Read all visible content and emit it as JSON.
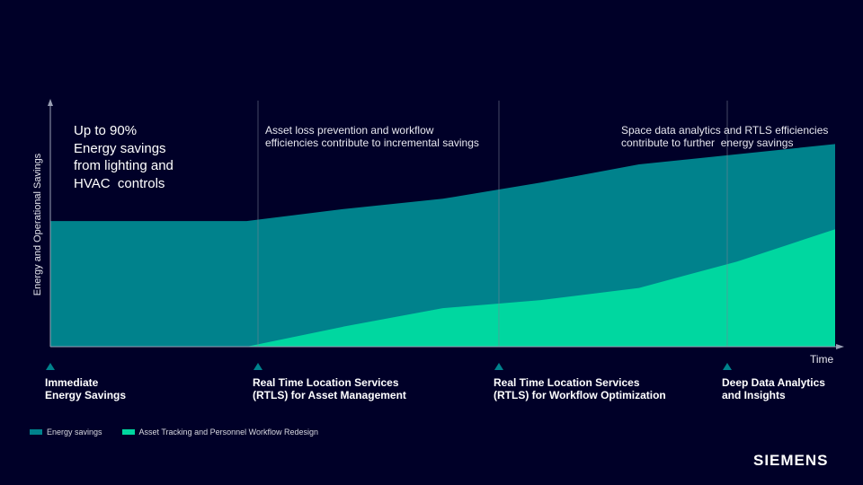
{
  "chart_data": {
    "type": "area",
    "title": "",
    "xlabel": "Time",
    "ylabel": "Energy and Operational Savings",
    "x": [
      0,
      1,
      2,
      3,
      4,
      5,
      6,
      7,
      8
    ],
    "series": [
      {
        "name": "Energy savings",
        "color": "#00828c",
        "values": [
          62,
          62,
          62,
          68,
          73,
          81,
          90,
          95,
          100
        ]
      },
      {
        "name": "Asset Tracking and Personnel Workflow Redesign",
        "color": "#00d7a0",
        "values": [
          0,
          0,
          0,
          10,
          19,
          23,
          29,
          42,
          58
        ]
      }
    ],
    "ylim": [
      0,
      125
    ],
    "grid": false,
    "legend": "bottom-left"
  },
  "annotations": {
    "immediate": [
      "Up to 90%",
      "Energy savings",
      "from lighting and",
      "HVAC  controls"
    ],
    "rtls_asset": [
      "Asset loss prevention and workflow",
      "efficiencies contribute to incremental savings"
    ],
    "analytics": [
      "Space data analytics and RTLS efficiencies",
      "contribute to further  energy savings"
    ]
  },
  "phases": [
    {
      "line1": "Immediate",
      "line2": "Energy Savings"
    },
    {
      "line1": "Real Time Location Services",
      "line2": "(RTLS) for Asset Management"
    },
    {
      "line1": "Real Time Location Services",
      "line2": "(RTLS) for Workflow Optimization"
    },
    {
      "line1": "Deep Data Analytics",
      "line2": "and Insights"
    }
  ],
  "legend_items": [
    "Energy savings",
    "Asset Tracking and Personnel Workflow Redesign"
  ],
  "brand": "SIEMENS",
  "colors": {
    "background": "#000028",
    "axis": "#9aa0b4",
    "marker": "#00828c"
  }
}
